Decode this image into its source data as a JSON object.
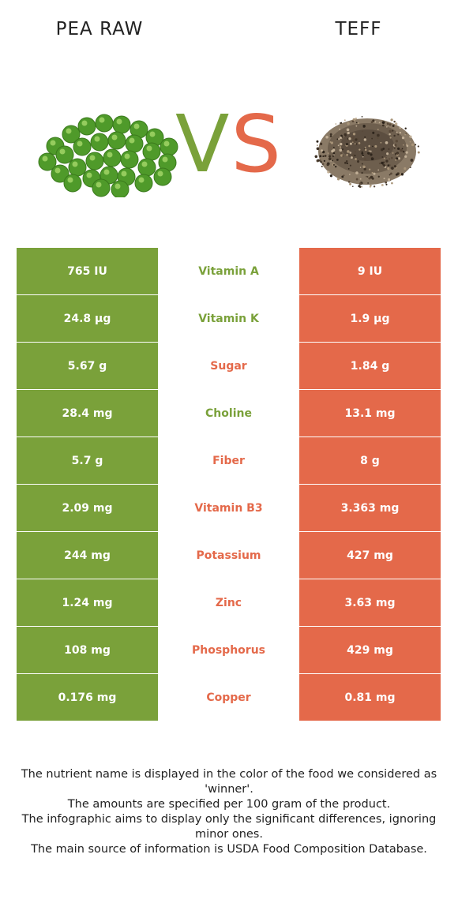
{
  "header": {
    "left_food": "PEA RAW",
    "right_food": "TEFF",
    "vs_v": "V",
    "vs_s": "S"
  },
  "colors": {
    "left_winner": "#7aa13a",
    "right_winner": "#e4694a"
  },
  "images": {
    "left": "green-peas-image",
    "right": "teff-grain-pile-image"
  },
  "rows": [
    {
      "left": "765 IU",
      "nutrient": "Vitamin A",
      "right": "9 IU",
      "winner": "left"
    },
    {
      "left": "24.8 µg",
      "nutrient": "Vitamin K",
      "right": "1.9 µg",
      "winner": "left"
    },
    {
      "left": "5.67 g",
      "nutrient": "Sugar",
      "right": "1.84 g",
      "winner": "right"
    },
    {
      "left": "28.4 mg",
      "nutrient": "Choline",
      "right": "13.1 mg",
      "winner": "left"
    },
    {
      "left": "5.7 g",
      "nutrient": "Fiber",
      "right": "8 g",
      "winner": "right"
    },
    {
      "left": "2.09 mg",
      "nutrient": "Vitamin B3",
      "right": "3.363 mg",
      "winner": "right"
    },
    {
      "left": "244 mg",
      "nutrient": "Potassium",
      "right": "427 mg",
      "winner": "right"
    },
    {
      "left": "1.24 mg",
      "nutrient": "Zinc",
      "right": "3.63 mg",
      "winner": "right"
    },
    {
      "left": "108 mg",
      "nutrient": "Phosphorus",
      "right": "429 mg",
      "winner": "right"
    },
    {
      "left": "0.176 mg",
      "nutrient": "Copper",
      "right": "0.81 mg",
      "winner": "right"
    }
  ],
  "footnote": [
    "The nutrient name is displayed in the color of the food we considered as 'winner'.",
    "The amounts are specified per 100 gram of the product.",
    "The infographic aims to display only the significant differences, ignoring minor ones.",
    "The main source of information is USDA Food Composition Database."
  ]
}
